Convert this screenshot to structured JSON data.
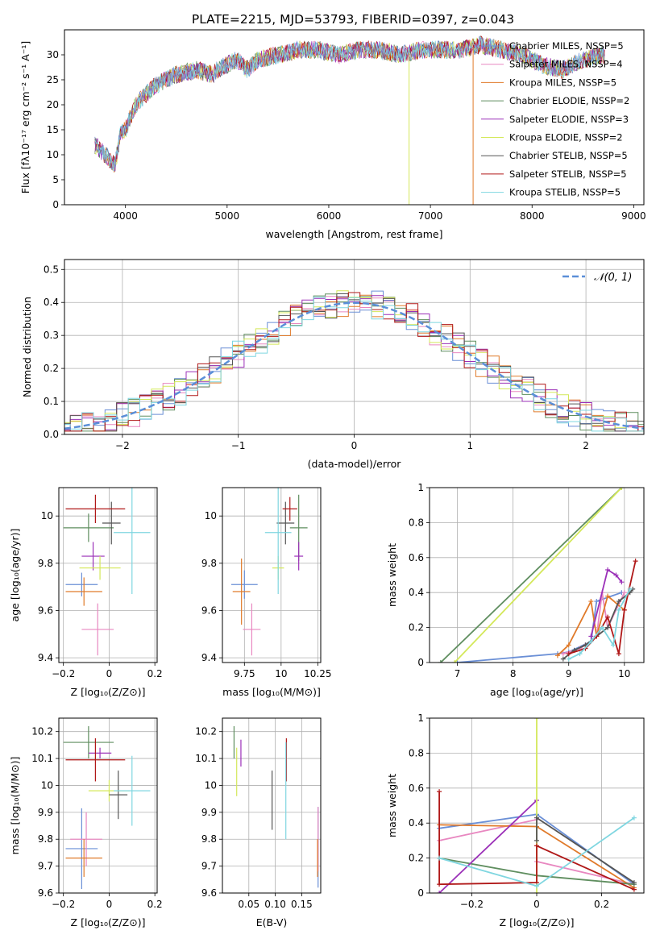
{
  "figure_title": "PLATE=2215, MJD=53793, FIBERID=0397, z=0.043",
  "series_colors": [
    "#6a8fd6",
    "#e887c0",
    "#e07a2a",
    "#5f8e5f",
    "#9b30b8",
    "#d4e85a",
    "#555555",
    "#b01818",
    "#7fd6e0"
  ],
  "chart_data": [
    {
      "id": "spectrum",
      "type": "line",
      "title": "PLATE=2215, MJD=53793, FIBERID=0397, z=0.043",
      "xlabel": "wavelength [Angstrom, rest frame]",
      "ylabel": "Flux [fλ10⁻¹⁷ erg cm⁻² s⁻¹ A⁻¹]",
      "xlim": [
        3400,
        9100
      ],
      "ylim": [
        0,
        35
      ],
      "xticks": [
        4000,
        5000,
        6000,
        7000,
        8000,
        9000
      ],
      "yticks": [
        0,
        5,
        10,
        15,
        20,
        25,
        30
      ],
      "legend_position": "upper right",
      "legend": [
        "Chabrier MILES, NSSP=5",
        "Salpeter MILES, NSSP=4",
        "Kroupa MILES, NSSP=5",
        "Chabrier ELODIE, NSSP=2",
        "Salpeter ELODIE, NSSP=3",
        "Kroupa ELODIE, NSSP=2",
        "Chabrier STELIB, NSSP=5",
        "Salpeter STELIB, NSSP=5",
        "Kroupa STELIB, NSSP=5"
      ],
      "spectrum_x": [
        3700,
        3800,
        3900,
        3950,
        4000,
        4100,
        4200,
        4300,
        4400,
        4500,
        4700,
        4860,
        4900,
        5000,
        5100,
        5200,
        5300,
        5500,
        5700,
        5900,
        6100,
        6300,
        6500,
        6700,
        6900,
        7100,
        7300,
        7500,
        7700,
        7900,
        8100,
        8300,
        8500,
        8700
      ],
      "spectrum_y": [
        12,
        10,
        8,
        14,
        15,
        20,
        22,
        24,
        25,
        26,
        27,
        26,
        27,
        28,
        29,
        27,
        29,
        30,
        31,
        31,
        30,
        31,
        31,
        30,
        31,
        31,
        31,
        32,
        31,
        30,
        28,
        27,
        29,
        30
      ],
      "dropouts": [
        {
          "x": 6790,
          "to": 0
        },
        {
          "x": 7420,
          "to": 0
        }
      ]
    },
    {
      "id": "residuals",
      "type": "line",
      "xlabel": "(data-model)/error",
      "ylabel": "Normed distribution",
      "xlim": [
        -2.5,
        2.5
      ],
      "ylim": [
        0,
        0.53
      ],
      "xticks": [
        -2,
        -1,
        0,
        1,
        2
      ],
      "yticks": [
        0,
        0.1,
        0.2,
        0.3,
        0.4,
        0.5
      ],
      "legend_position": "upper right",
      "legend": [
        "𝒩(0, 1)"
      ],
      "gaussian": {
        "mean": 0,
        "sigma": 1
      }
    },
    {
      "id": "age-z",
      "type": "scatter",
      "xlabel": "Z [log₁₀(Z/Z⊙)]",
      "ylabel": "age  [log₁₀(age/yr)]",
      "xlim": [
        -0.22,
        0.21
      ],
      "ylim": [
        9.38,
        10.12
      ],
      "xticks": [
        -0.2,
        0.0,
        0.2
      ],
      "yticks": [
        9.4,
        9.6,
        9.8,
        10.0
      ],
      "points": [
        {
          "x": -0.12,
          "y": 9.71,
          "xerr": 0.07,
          "yerr": 0.05
        },
        {
          "x": -0.05,
          "y": 9.52,
          "xerr": 0.07,
          "yerr": 0.11
        },
        {
          "x": -0.11,
          "y": 9.68,
          "xerr": 0.08,
          "yerr": 0.06
        },
        {
          "x": -0.09,
          "y": 9.95,
          "xerr": 0.11,
          "yerr": 0.06
        },
        {
          "x": -0.07,
          "y": 9.83,
          "xerr": 0.05,
          "yerr": 0.06
        },
        {
          "x": -0.04,
          "y": 9.78,
          "xerr": 0.09,
          "yerr": 0.05
        },
        {
          "x": 0.01,
          "y": 9.97,
          "xerr": 0.04,
          "yerr": 0.09
        },
        {
          "x": -0.06,
          "y": 10.03,
          "xerr": 0.13,
          "yerr": 0.06
        },
        {
          "x": 0.1,
          "y": 9.93,
          "xerr": 0.08,
          "yerr": 0.26
        }
      ]
    },
    {
      "id": "age-mass",
      "type": "scatter",
      "xlabel": "mass [log₁₀(M/M⊙)]",
      "ylabel": "",
      "xlim": [
        9.6,
        10.27
      ],
      "ylim": [
        9.38,
        10.12
      ],
      "xticks": [
        9.75,
        10.0,
        10.25
      ],
      "yticks": [
        9.4,
        9.6,
        9.8,
        10.0
      ],
      "points": [
        {
          "x": 9.75,
          "y": 9.71,
          "xerr": 0.09,
          "yerr": 0.06
        },
        {
          "x": 9.8,
          "y": 9.52,
          "xerr": 0.06,
          "yerr": 0.11
        },
        {
          "x": 9.73,
          "y": 9.68,
          "xerr": 0.06,
          "yerr": 0.14
        },
        {
          "x": 10.12,
          "y": 9.95,
          "xerr": 0.06,
          "yerr": 0.14
        },
        {
          "x": 10.12,
          "y": 9.83,
          "xerr": 0.03,
          "yerr": 0.06
        },
        {
          "x": 9.98,
          "y": 9.78,
          "xerr": 0.04,
          "yerr": 0.05
        },
        {
          "x": 10.03,
          "y": 9.97,
          "xerr": 0.06,
          "yerr": 0.09
        },
        {
          "x": 10.06,
          "y": 10.03,
          "xerr": 0.05,
          "yerr": 0.05
        },
        {
          "x": 9.98,
          "y": 9.93,
          "xerr": 0.09,
          "yerr": 0.26
        }
      ]
    },
    {
      "id": "massweight-age",
      "type": "line",
      "xlabel": "age  [log₁₀(age/yr)]",
      "ylabel": "mass weight",
      "xlim": [
        6.5,
        10.35
      ],
      "ylim": [
        0,
        1
      ],
      "xticks": [
        7,
        8,
        9,
        10
      ],
      "yticks": [
        0,
        0.2,
        0.4,
        0.6,
        0.8,
        1.0
      ],
      "series": [
        {
          "x": [
            7.0,
            8.8,
            9.0,
            9.4,
            9.5,
            9.95
          ],
          "y": [
            0.0,
            0.05,
            0.06,
            0.12,
            0.35,
            0.4
          ]
        },
        {
          "x": [
            8.9,
            9.2,
            9.3,
            9.5,
            9.6,
            9.7,
            10.0
          ],
          "y": [
            0.05,
            0.08,
            0.1,
            0.15,
            0.4,
            0.2,
            0.4
          ]
        },
        {
          "x": [
            8.8,
            9.0,
            9.4,
            9.5,
            9.7,
            10.0
          ],
          "y": [
            0.04,
            0.1,
            0.35,
            0.15,
            0.38,
            0.3
          ]
        },
        {
          "x": [
            6.7,
            9.95
          ],
          "y": [
            0.0,
            1.0
          ]
        },
        {
          "x": [
            9.4,
            9.7,
            9.85,
            9.95
          ],
          "y": [
            0.15,
            0.53,
            0.5,
            0.46
          ]
        },
        {
          "x": [
            6.95,
            9.95
          ],
          "y": [
            0.0,
            1.0
          ]
        },
        {
          "x": [
            8.9,
            9.1,
            9.3,
            9.5,
            9.7,
            9.9,
            10.1,
            10.15
          ],
          "y": [
            0.02,
            0.07,
            0.1,
            0.15,
            0.2,
            0.35,
            0.4,
            0.42
          ]
        },
        {
          "x": [
            9.0,
            9.3,
            9.5,
            9.7,
            9.9,
            10.0,
            10.2
          ],
          "y": [
            0.05,
            0.08,
            0.15,
            0.26,
            0.05,
            0.3,
            0.58
          ]
        },
        {
          "x": [
            9.0,
            9.2,
            9.4,
            9.6,
            9.8,
            9.9,
            10.1
          ],
          "y": [
            0.02,
            0.05,
            0.12,
            0.2,
            0.1,
            0.3,
            0.42
          ]
        }
      ]
    },
    {
      "id": "mass-z",
      "type": "scatter",
      "xlabel": "Z [log₁₀(Z/Z⊙)]",
      "ylabel": "mass [log₁₀(M/M⊙)]",
      "xlim": [
        -0.22,
        0.21
      ],
      "ylim": [
        9.6,
        10.25
      ],
      "xticks": [
        -0.2,
        0.0,
        0.2
      ],
      "yticks": [
        9.6,
        9.7,
        9.8,
        9.9,
        10.0,
        10.1,
        10.2
      ],
      "points": [
        {
          "x": -0.12,
          "y": 9.765,
          "xerr": 0.07,
          "yerr": 0.15
        },
        {
          "x": -0.1,
          "y": 9.8,
          "xerr": 0.07,
          "yerr": 0.1
        },
        {
          "x": -0.11,
          "y": 9.73,
          "xerr": 0.08,
          "yerr": 0.07
        },
        {
          "x": -0.09,
          "y": 10.16,
          "xerr": 0.11,
          "yerr": 0.06
        },
        {
          "x": -0.04,
          "y": 10.12,
          "xerr": 0.05,
          "yerr": 0.02
        },
        {
          "x": 0.0,
          "y": 9.98,
          "xerr": 0.09,
          "yerr": 0.04
        },
        {
          "x": 0.04,
          "y": 9.965,
          "xerr": 0.04,
          "yerr": 0.09
        },
        {
          "x": -0.06,
          "y": 10.095,
          "xerr": 0.13,
          "yerr": 0.08
        },
        {
          "x": 0.1,
          "y": 9.98,
          "xerr": 0.08,
          "yerr": 0.13
        }
      ]
    },
    {
      "id": "mass-ebv",
      "type": "scatter",
      "xlabel": "E(B-V)",
      "ylabel": "",
      "xlim": [
        0.0,
        0.186
      ],
      "ylim": [
        9.6,
        10.25
      ],
      "xticks": [
        0.05,
        0.1,
        0.15
      ],
      "xtick_labels": [
        "0.05",
        "0.10",
        "0.15"
      ],
      "yticks": [
        9.6,
        9.7,
        9.8,
        9.9,
        10.0,
        10.1,
        10.2
      ],
      "points": [
        {
          "x": 0.181,
          "y": 9.77,
          "xerr": 0.0,
          "yerr": 0.15
        },
        {
          "x": 0.181,
          "y": 9.8,
          "xerr": 0.0,
          "yerr": 0.12
        },
        {
          "x": 0.18,
          "y": 9.73,
          "xerr": 0.0,
          "yerr": 0.07
        },
        {
          "x": 0.022,
          "y": 10.16,
          "xerr": 0.0,
          "yerr": 0.06
        },
        {
          "x": 0.035,
          "y": 10.12,
          "xerr": 0.0,
          "yerr": 0.05
        },
        {
          "x": 0.027,
          "y": 10.05,
          "xerr": 0.0,
          "yerr": 0.09
        },
        {
          "x": 0.094,
          "y": 9.945,
          "xerr": 0.0,
          "yerr": 0.11
        },
        {
          "x": 0.121,
          "y": 10.095,
          "xerr": 0.0,
          "yerr": 0.08
        },
        {
          "x": 0.12,
          "y": 9.98,
          "xerr": 0.0,
          "yerr": 0.18
        }
      ]
    },
    {
      "id": "massweight-z",
      "type": "line",
      "xlabel": "Z [log₁₀(Z/Z⊙)]",
      "ylabel": "mass weight",
      "xlim": [
        -0.33,
        0.33
      ],
      "ylim": [
        0,
        1
      ],
      "xticks": [
        -0.2,
        0.0,
        0.2
      ],
      "yticks": [
        0,
        0.2,
        0.4,
        0.6,
        0.8,
        1.0
      ],
      "series": [
        {
          "x": [
            -0.3,
            0.0,
            0.3
          ],
          "y": [
            0.37,
            0.45,
            0.05
          ]
        },
        {
          "x": [
            -0.3,
            0.0,
            0.0,
            0.3
          ],
          "y": [
            0.3,
            0.42,
            0.18,
            0.05
          ]
        },
        {
          "x": [
            -0.3,
            0.0,
            0.3
          ],
          "y": [
            0.39,
            0.38,
            0.03
          ]
        },
        {
          "x": [
            -0.3,
            0.0,
            0.3
          ],
          "y": [
            0.2,
            0.1,
            0.05
          ]
        },
        {
          "x": [
            -0.3,
            0.0
          ],
          "y": [
            0.0,
            0.53
          ]
        },
        {
          "x": [
            0.0,
            0.0
          ],
          "y": [
            0.0,
            1.0
          ]
        },
        {
          "x": [
            0.0,
            0.0,
            0.3
          ],
          "y": [
            0.3,
            0.43,
            0.06
          ]
        },
        {
          "x": [
            -0.3,
            -0.3,
            0.0,
            0.0,
            0.3
          ],
          "y": [
            0.58,
            0.05,
            0.06,
            0.27,
            0.02
          ]
        },
        {
          "x": [
            -0.3,
            0.0,
            0.3
          ],
          "y": [
            0.2,
            0.04,
            0.43
          ]
        }
      ]
    }
  ]
}
